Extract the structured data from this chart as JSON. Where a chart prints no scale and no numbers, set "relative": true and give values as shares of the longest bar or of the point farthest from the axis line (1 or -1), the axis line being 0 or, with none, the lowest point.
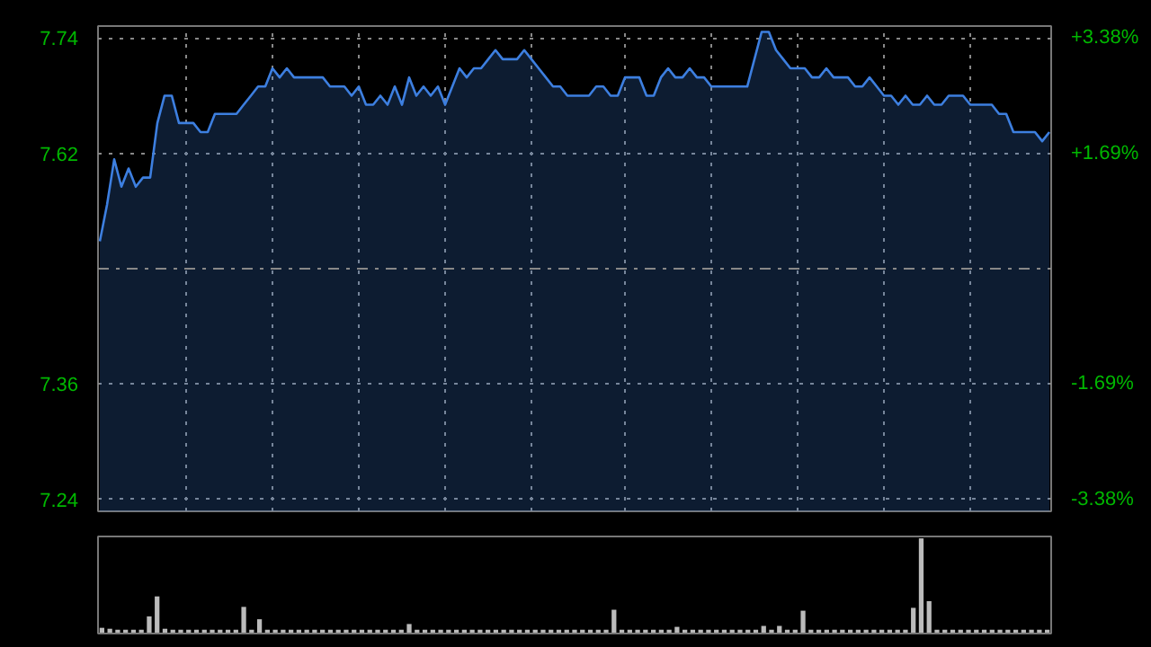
{
  "chart_data": [
    {
      "type": "area",
      "categories": [
        null,
        null,
        null,
        null,
        null,
        null,
        null,
        null,
        null,
        null,
        null,
        null,
        null,
        null,
        null,
        null,
        null,
        null,
        null,
        null,
        null,
        null,
        null,
        null,
        null,
        null,
        null,
        null,
        null,
        null,
        null,
        null,
        null,
        null,
        null,
        null,
        null,
        null,
        null,
        null,
        null,
        null,
        null,
        null,
        null,
        null,
        null,
        null,
        null,
        null,
        null,
        null,
        null,
        null,
        null,
        null,
        null,
        null,
        null,
        null,
        null,
        null,
        null,
        null,
        null,
        null,
        null,
        null,
        null,
        null,
        null,
        null,
        null,
        null,
        null,
        null,
        null,
        null,
        null,
        null,
        null,
        null,
        null,
        null,
        null,
        null,
        null,
        null,
        null,
        null,
        null,
        null,
        null,
        null,
        null,
        null,
        null,
        null,
        null,
        null,
        null,
        null,
        null,
        null,
        null,
        null,
        null,
        null,
        null,
        null,
        null,
        null,
        null,
        null,
        null,
        null,
        null,
        null,
        null,
        null,
        null,
        null,
        null,
        null,
        null,
        null,
        null,
        null,
        null,
        null,
        null,
        null,
        null
      ],
      "series": [
        {
          "color": "#3d7fe0",
          "values": [
            7.52,
            7.56,
            7.61,
            7.58,
            7.6,
            7.58,
            7.59,
            7.59,
            7.65,
            7.68,
            7.68,
            7.65,
            7.65,
            7.65,
            7.64,
            7.64,
            7.66,
            7.66,
            7.66,
            7.66,
            7.67,
            7.68,
            7.69,
            7.69,
            7.71,
            7.7,
            7.71,
            7.7,
            7.7,
            7.7,
            7.7,
            7.7,
            7.69,
            7.69,
            7.69,
            7.68,
            7.69,
            7.67,
            7.67,
            7.68,
            7.67,
            7.69,
            7.67,
            7.7,
            7.68,
            7.69,
            7.68,
            7.69,
            7.67,
            7.69,
            7.71,
            7.7,
            7.71,
            7.71,
            7.72,
            7.73,
            7.72,
            7.72,
            7.72,
            7.73,
            7.72,
            7.71,
            7.7,
            7.69,
            7.69,
            7.68,
            7.68,
            7.68,
            7.68,
            7.69,
            7.69,
            7.68,
            7.68,
            7.7,
            7.7,
            7.7,
            7.68,
            7.68,
            7.7,
            7.71,
            7.7,
            7.7,
            7.71,
            7.7,
            7.7,
            7.69,
            7.69,
            7.69,
            7.69,
            7.69,
            7.69,
            7.72,
            7.75,
            7.75,
            7.73,
            7.72,
            7.71,
            7.71,
            7.71,
            7.7,
            7.7,
            7.71,
            7.7,
            7.7,
            7.7,
            7.69,
            7.69,
            7.7,
            7.69,
            7.68,
            7.68,
            7.67,
            7.68,
            7.67,
            7.67,
            7.68,
            7.67,
            7.67,
            7.68,
            7.68,
            7.68,
            7.67,
            7.67,
            7.67,
            7.67,
            7.66,
            7.66,
            7.64,
            7.64,
            7.64,
            7.64,
            7.63,
            7.64
          ]
        }
      ],
      "ylim": [
        7.2236,
        7.7564
      ],
      "yticks": [
        {
          "value": 7.2368,
          "label": "7.24"
        },
        {
          "value": 7.3634,
          "label": "7.36"
        },
        {
          "value": 7.6166,
          "label": "7.62"
        },
        {
          "value": 7.7432,
          "label": "7.74"
        }
      ],
      "y2lim": [
        -3.557,
        3.557
      ],
      "y2ticks": [
        {
          "value": -3.38,
          "label": "-3.38%"
        },
        {
          "value": -1.69,
          "label": "-1.69%"
        },
        {
          "value": 1.69,
          "label": "+1.69%"
        },
        {
          "value": 3.38,
          "label": "+3.38%"
        }
      ],
      "ref_lines": [
        {
          "axis": "y",
          "value": 7.49,
          "color": "#888888",
          "line_style": "dashed"
        }
      ],
      "grid": true
    },
    {
      "type": "bar",
      "relative": true,
      "color": "#bbbbbb",
      "categories": [
        null,
        null,
        null,
        null,
        null,
        null,
        null,
        null,
        null,
        null,
        null,
        null,
        null,
        null,
        null,
        null,
        null,
        null,
        null,
        null,
        null,
        null,
        null,
        null,
        null,
        null,
        null,
        null,
        null,
        null,
        null,
        null,
        null,
        null,
        null,
        null,
        null,
        null,
        null,
        null,
        null,
        null,
        null,
        null,
        null,
        null,
        null,
        null,
        null,
        null,
        null,
        null,
        null,
        null,
        null,
        null,
        null,
        null,
        null,
        null,
        null,
        null,
        null,
        null,
        null,
        null,
        null,
        null,
        null,
        null,
        null,
        null,
        null,
        null,
        null,
        null,
        null,
        null,
        null,
        null,
        null,
        null,
        null,
        null,
        null,
        null,
        null,
        null,
        null,
        null,
        null,
        null,
        null,
        null,
        null,
        null,
        null,
        null,
        null,
        null,
        null,
        null,
        null,
        null,
        null,
        null,
        null,
        null,
        null,
        null,
        null,
        null,
        null,
        null,
        null,
        null,
        null,
        null,
        null,
        null,
        null
      ],
      "values": [
        0.06,
        0.05,
        0.04,
        0.04,
        0.04,
        0.04,
        0.18,
        0.39,
        0.05,
        0.04,
        0.04,
        0.04,
        0.04,
        0.04,
        0.04,
        0.04,
        0.04,
        0.04,
        0.28,
        0.04,
        0.15,
        0.04,
        0.04,
        0.04,
        0.04,
        0.04,
        0.04,
        0.04,
        0.04,
        0.04,
        0.04,
        0.04,
        0.04,
        0.04,
        0.04,
        0.04,
        0.04,
        0.04,
        0.04,
        0.1,
        0.04,
        0.04,
        0.04,
        0.04,
        0.04,
        0.04,
        0.04,
        0.04,
        0.04,
        0.04,
        0.04,
        0.04,
        0.04,
        0.04,
        0.04,
        0.04,
        0.04,
        0.04,
        0.04,
        0.04,
        0.04,
        0.04,
        0.04,
        0.04,
        0.04,
        0.25,
        0.04,
        0.04,
        0.04,
        0.04,
        0.04,
        0.04,
        0.04,
        0.07,
        0.04,
        0.04,
        0.04,
        0.04,
        0.04,
        0.04,
        0.04,
        0.04,
        0.04,
        0.04,
        0.08,
        0.04,
        0.08,
        0.04,
        0.04,
        0.24,
        0.04,
        0.04,
        0.04,
        0.04,
        0.04,
        0.04,
        0.04,
        0.04,
        0.04,
        0.04,
        0.04,
        0.04,
        0.04,
        0.27,
        1,
        0.34,
        0.04,
        0.04,
        0.04,
        0.04,
        0.04,
        0.04,
        0.04,
        0.04,
        0.04,
        0.04,
        0.04,
        0.04,
        0.04,
        0.04,
        0.04
      ]
    }
  ]
}
